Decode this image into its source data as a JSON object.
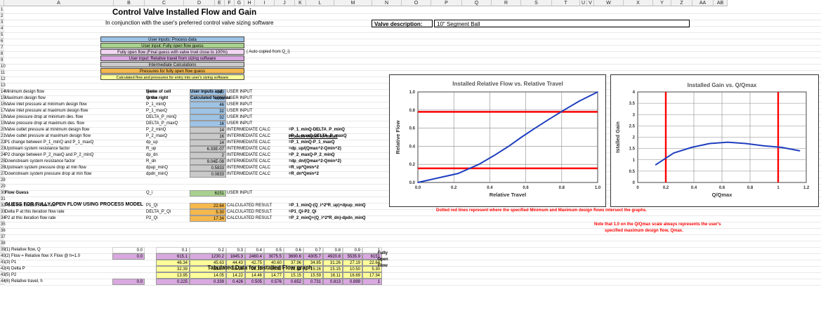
{
  "columns": [
    "A",
    "B",
    "C",
    "D",
    "E",
    "F",
    "G",
    "H",
    "I",
    "J",
    "K",
    "L",
    "M",
    "N",
    "O",
    "P",
    "Q",
    "R",
    "S",
    "T",
    "U",
    "V",
    "W",
    "X",
    "Y",
    "Z",
    "AA",
    "AB"
  ],
  "rows": [
    "1",
    "2",
    "3",
    "4",
    "5",
    "6",
    "7",
    "8",
    "9",
    "10",
    "11",
    "12",
    "13",
    "14",
    "15",
    "16",
    "17",
    "18",
    "19",
    "20",
    "21",
    "22",
    "23",
    "24",
    "25",
    "26",
    "27",
    "28",
    "29",
    "30",
    "31",
    "32",
    "33",
    "34",
    "35",
    "36",
    "37",
    "38",
    "39",
    "40",
    "41",
    "42",
    "43",
    "44"
  ],
  "title": "Control Valve Installed Flow and Gain",
  "subtitle": "In conjunction with the user's preferred control valve sizing software",
  "valve_desc_label": "Valve description:",
  "valve_desc_value": "10\" Segment Ball",
  "legend": {
    "process": "User inputs: Process data",
    "fullflow": "User input: Fully open flow guess",
    "final": "Fully open flow (Final guess with valve trvel  close to 100%)",
    "autocopied": "( Auto copied from Q_i)",
    "travel": "User input: Relative travel from sizing software",
    "intermediate": "Intermediate Calculations",
    "pressures": "Pressures for fully open flow guess",
    "calculated": "Calculated flow and pressures for entry into user's sizing software"
  },
  "hdr_name1": "Name of cell",
  "hdr_name2": "to the right",
  "hdr_inputs1": "User inputs and",
  "hdr_inputs2": "Calculated formulas",
  "process_model_title": "Process model formulas",
  "params": [
    {
      "row": "14",
      "desc": "Minimum design flow",
      "name": "Qmin",
      "value": "960",
      "type": "USER INPUT",
      "fill": "blue",
      "formula": ""
    },
    {
      "row": "15",
      "desc": "Maximum design flow",
      "name": "Qmax",
      "value": "4800",
      "type": "USER INPUT",
      "fill": "blue",
      "formula": ""
    },
    {
      "row": "16",
      "desc": "Valve inlet pressure at minimum design flow",
      "name": "P_1_minQ",
      "value": "46",
      "type": "USER INPUT",
      "fill": "blue",
      "formula": ""
    },
    {
      "row": "17",
      "desc": "Valve inlet pressure at maximum design flow",
      "name": "P_1_maxQ",
      "value": "32",
      "type": "USER INPUT",
      "fill": "blue",
      "formula": ""
    },
    {
      "row": "18",
      "desc": "Valve pressure drop at minimum des. flow",
      "name": "DELTA_P_minQ",
      "value": "32",
      "type": "USER INPUT",
      "fill": "blue",
      "formula": ""
    },
    {
      "row": "19",
      "desc": "Valve pressure drop at maximum des. flow",
      "name": "DELTA_P_maxQ",
      "value": "16",
      "type": "USER INPUT",
      "fill": "blue",
      "formula": ""
    },
    {
      "row": "20",
      "desc": "Valve outlet pressure at minimum design flow",
      "name": "P_2_minQ",
      "value": "14",
      "type": "INTERMEDIATE CALC",
      "fill": "grey",
      "formula": "=P_1_minQ-DELTA_P_minQ"
    },
    {
      "row": "21",
      "desc": "Valve outlet pressure at maximum design flow",
      "name": "P_2_maxQ",
      "value": "16",
      "type": "INTERMEDIATE CALC",
      "fill": "grey",
      "formula": "=P_1_maxQ-DELTA_P_maxQ"
    },
    {
      "row": "22",
      "desc": "P1 change between P_1_minQ and P_1_maxQ",
      "name": "dp_up",
      "value": "14",
      "type": "INTERMEDIATE CALC",
      "fill": "grey",
      "formula": "=P_1_minQ-P_1_maxQ"
    },
    {
      "row": "23",
      "desc": "Upstream system resistance factor",
      "name": "R_up",
      "value": "6.33E-07",
      "type": "INTERMEDIATE CALC",
      "fill": "grey",
      "formula": "=dp_up/(Qmax^2-Qmin^2)"
    },
    {
      "row": "24",
      "desc": "P2 change between P_2_maxQ and P_2_minQ",
      "name": "dp_dn",
      "value": "2",
      "type": "INTERMEDIATE CALC",
      "fill": "grey",
      "formula": "=P_2_maxQ-P_2_minQ"
    },
    {
      "row": "25",
      "desc": "Downstream system resistance factor",
      "name": "R_dn",
      "value": "9.04E-08",
      "type": "INTERMEDIATE CALC",
      "fill": "grey",
      "formula": "=dp_dn/(Qmax^2-Qmin^2)"
    },
    {
      "row": "26",
      "desc": "Upstream system pressure drop at min flow",
      "name": "dpup_minQ",
      "value": "0.5833",
      "type": "INTERMEDIATE CALC",
      "fill": "grey",
      "formula": "=R_up*Qmin^2"
    },
    {
      "row": "27",
      "desc": "Downstream system pressure drop at min flow",
      "name": "dpdn_minQ",
      "value": "0.0833",
      "type": "INTERMEDIATE CALC",
      "fill": "grey",
      "formula": "=R_dn*Qmin^2"
    }
  ],
  "guess_title": "GUESS FOR FULLY OPEN FLOW USING PROCESS MODEL",
  "flow_guess": {
    "desc": "Flow Guess",
    "name": "Q_i",
    "value": "6151",
    "type": "USER INPUT"
  },
  "iter": [
    {
      "row": "32",
      "desc": "P1 at this iteration flow rate",
      "name": "P1_Qi",
      "value": "22.64",
      "type": "CALCULATED RESULT",
      "formula": "=P_1_minQ-(Q_i^2*R_up)+dpup_minQ"
    },
    {
      "row": "33",
      "desc": "Delta P at this iteration flow rate",
      "name": "DELTA_P_Qi",
      "value": "5.30",
      "type": "CALCULATED RESULT",
      "formula": "=P1_Qi-P2_Qi"
    },
    {
      "row": "34",
      "desc": "P2 at this iteration flow rate",
      "name": "P2_Qi",
      "value": "17.34",
      "type": "CALCULATED RESULT",
      "formula": "=P_2_minQ+(Q_i^2*R_dn)-dpdn_minQ"
    }
  ],
  "fully_open_label": [
    "Fully",
    "Open",
    "Flow"
  ],
  "table_title": "Tabulated Data for Installed Flow graph",
  "table_rows": [
    {
      "row": "39",
      "label": "(1) Relative flow, Q",
      "fill": "none",
      "values": [
        "0.0",
        "0.1",
        "0.2",
        "0.3",
        "0.4",
        "0.5",
        "0.6",
        "0.7",
        "0.8",
        "0.9",
        "1"
      ]
    },
    {
      "row": "40",
      "label": "(2) Flow = Relative flow X Flow @ h=1.0",
      "fill": "violet",
      "values": [
        "0.0",
        "615.1",
        "1230.2",
        "1845.3",
        "2460.4",
        "3075.5",
        "3690.6",
        "4305.7",
        "4920.8",
        "5535.9",
        "6151"
      ]
    },
    {
      "row": "41",
      "label": "(3) P1",
      "fill": "yellow",
      "values": [
        "",
        "46.34",
        "45.63",
        "44.43",
        "42.75",
        "40.60",
        "37.96",
        "34.85",
        "31.26",
        "27.19",
        "22.64"
      ]
    },
    {
      "row": "42",
      "label": "(4) Delta P",
      "fill": "yellow",
      "values": [
        "",
        "32.39",
        "31.57",
        "30.20",
        "28.29",
        "25.82",
        "22.81",
        "19.26",
        "15.15",
        "10.50",
        "5.30"
      ]
    },
    {
      "row": "43",
      "label": "(5) P2",
      "fill": "yellow",
      "values": [
        "",
        "13.95",
        "14.05",
        "14.22",
        "14.46",
        "14.77",
        "15.15",
        "15.59",
        "16.11",
        "16.69",
        "17.34"
      ]
    },
    {
      "row": "44",
      "label": "(6) Relative travel, h",
      "fill": "violet",
      "values": [
        "0.0",
        "0.225",
        "0.339",
        "0.426",
        "0.505",
        "0.576",
        "0.652",
        "0.731",
        "0.813",
        "0.899",
        "1"
      ]
    }
  ],
  "notes": {
    "dotted": "Dotted red lines represent where the specified Minimum and Maximum design flows intersect the graphs.",
    "scale1": "Note that 1.0 on the Q/Qmax scale always represents the user's",
    "scale2": "specified maximum design flow, Qmax."
  },
  "chart_data": [
    {
      "type": "line",
      "title": "Installed Relative Flow vs. Relative Travel",
      "xlabel": "Relative Travel",
      "ylabel": "Relative Flow",
      "xlim": [
        0,
        1
      ],
      "ylim": [
        0,
        1
      ],
      "xticks": [
        "0.0",
        "0.2",
        "0.4",
        "0.6",
        "0.8",
        "1.0"
      ],
      "yticks": [
        "0.0",
        "0.2",
        "0.4",
        "0.6",
        "0.8",
        "1.0"
      ],
      "x": [
        0,
        0.225,
        0.339,
        0.426,
        0.505,
        0.576,
        0.652,
        0.731,
        0.813,
        0.899,
        1
      ],
      "y": [
        0,
        0.1,
        0.2,
        0.3,
        0.4,
        0.5,
        0.6,
        0.7,
        0.8,
        0.9,
        1
      ],
      "series_color": "#1f3fbf",
      "ref_lines": {
        "orientation": "horizontal",
        "values": [
          0.156,
          0.78
        ],
        "color": "#ff0000"
      }
    },
    {
      "type": "line",
      "title": "Installed Gain vs. Q/Qmax",
      "xlabel": "Q/Qmax",
      "ylabel": "Istalled Gain",
      "xlim": [
        0,
        1.2
      ],
      "ylim": [
        0,
        4
      ],
      "xticks": [
        "0",
        "0.2",
        "0.4",
        "0.6",
        "0.8",
        "1",
        "1.2"
      ],
      "yticks": [
        "0",
        "0.5",
        "1",
        "1.5",
        "2",
        "2.5",
        "3",
        "3.5",
        "4"
      ],
      "x": [
        0.128,
        0.256,
        0.384,
        0.512,
        0.641,
        0.769,
        0.897,
        1.025,
        1.153
      ],
      "y": [
        0.78,
        1.3,
        1.55,
        1.72,
        1.78,
        1.72,
        1.62,
        1.55,
        1.4
      ],
      "series_color": "#1f3fbf",
      "ref_lines": {
        "orientation": "vertical",
        "values": [
          0.2,
          1.0
        ],
        "color": "#ff0000"
      }
    }
  ]
}
